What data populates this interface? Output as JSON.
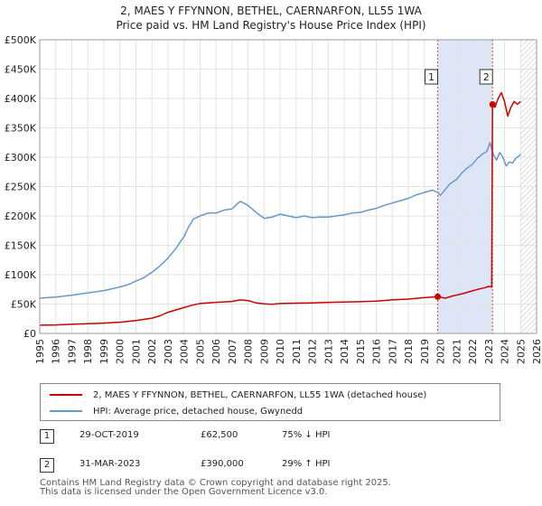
{
  "chart_data": {
    "type": "line",
    "title": "2, MAES Y FFYNNON, BETHEL, CAERNARFON, LL55 1WA",
    "subtitle": "Price paid vs. HM Land Registry's House Price Index (HPI)",
    "xlabel": "",
    "ylabel": "",
    "xlim": [
      1995,
      2026
    ],
    "ylim": [
      0,
      500000
    ],
    "y_ticks": [
      0,
      50000,
      100000,
      150000,
      200000,
      250000,
      300000,
      350000,
      400000,
      450000,
      500000
    ],
    "y_tick_labels": [
      "£0",
      "£50K",
      "£100K",
      "£150K",
      "£200K",
      "£250K",
      "£300K",
      "£350K",
      "£400K",
      "£450K",
      "£500K"
    ],
    "x_ticks": [
      1995,
      1996,
      1997,
      1998,
      1999,
      2000,
      2001,
      2002,
      2003,
      2004,
      2005,
      2006,
      2007,
      2008,
      2009,
      2010,
      2011,
      2012,
      2013,
      2014,
      2015,
      2016,
      2017,
      2018,
      2019,
      2020,
      2021,
      2022,
      2023,
      2024,
      2025,
      2026
    ],
    "x_tick_labels": [
      "1995",
      "1996",
      "1997",
      "1998",
      "1999",
      "2000",
      "2001",
      "2002",
      "2003",
      "2004",
      "2005",
      "2006",
      "2007",
      "2008",
      "2009",
      "2010",
      "2011",
      "2012",
      "2013",
      "2014",
      "2015",
      "2016",
      "2017",
      "2018",
      "2019",
      "2020",
      "2021",
      "2022",
      "2023",
      "2024",
      "2025",
      "2026"
    ],
    "grid": true,
    "shaded_regions": [
      {
        "x_start": 2019.83,
        "x_end": 2023.25,
        "color": "#dde6f7"
      }
    ],
    "hatched_future_from": 2025.0,
    "annotations": [
      {
        "label": "1",
        "x": 2019.83,
        "box_y": 440000
      },
      {
        "label": "2",
        "x": 2023.25,
        "box_y": 440000
      }
    ],
    "sale_points": [
      {
        "x": 2019.83,
        "y": 62500
      },
      {
        "x": 2023.25,
        "y": 390000
      }
    ],
    "series": [
      {
        "name": "2, MAES Y FFYNNON, BETHEL, CAERNARFON, LL55 1WA (detached house)",
        "color": "#cc0000",
        "x": [
          1995.0,
          1996.0,
          1997.0,
          1998.0,
          1999.0,
          2000.0,
          2001.0,
          2002.0,
          2002.5,
          2003.0,
          2003.5,
          2004.0,
          2004.5,
          2005.0,
          2006.0,
          2007.0,
          2007.5,
          2008.0,
          2008.5,
          2009.0,
          2009.5,
          2010.0,
          2011.0,
          2012.0,
          2013.0,
          2014.0,
          2015.0,
          2016.0,
          2017.0,
          2018.0,
          2019.0,
          2019.83,
          2020.3,
          2020.8,
          2021.3,
          2021.8,
          2022.3,
          2022.8,
          2023.0,
          2023.2,
          2023.25,
          2023.4,
          2023.6,
          2023.8,
          2024.0,
          2024.2,
          2024.4,
          2024.6,
          2024.8,
          2025.0
        ],
        "y": [
          14000,
          14500,
          15500,
          16500,
          17500,
          19000,
          22000,
          26000,
          30000,
          36000,
          40000,
          44000,
          48000,
          51000,
          53000,
          54500,
          57000,
          56000,
          52000,
          50500,
          49500,
          51000,
          51500,
          52000,
          53000,
          53500,
          54000,
          55000,
          57000,
          58500,
          61000,
          62500,
          60000,
          64000,
          67000,
          71000,
          75000,
          78000,
          80000,
          79000,
          390000,
          385000,
          400000,
          410000,
          395000,
          370000,
          385000,
          395000,
          390000,
          395000
        ]
      },
      {
        "name": "HPI: Average price, detached house, Gwynedd",
        "color": "#6699cc",
        "x": [
          1995.0,
          1995.5,
          1996.0,
          1996.5,
          1997.0,
          1997.5,
          1998.0,
          1998.5,
          1999.0,
          1999.5,
          2000.0,
          2000.5,
          2001.0,
          2001.5,
          2002.0,
          2002.5,
          2003.0,
          2003.5,
          2004.0,
          2004.3,
          2004.6,
          2005.0,
          2005.5,
          2006.0,
          2006.5,
          2007.0,
          2007.5,
          2008.0,
          2008.5,
          2009.0,
          2009.5,
          2010.0,
          2010.5,
          2011.0,
          2011.5,
          2012.0,
          2012.5,
          2013.0,
          2013.5,
          2014.0,
          2014.5,
          2015.0,
          2015.5,
          2016.0,
          2016.5,
          2017.0,
          2017.5,
          2018.0,
          2018.5,
          2019.0,
          2019.5,
          2019.83,
          2020.0,
          2020.3,
          2020.6,
          2021.0,
          2021.3,
          2021.6,
          2022.0,
          2022.3,
          2022.6,
          2022.9,
          2023.1,
          2023.3,
          2023.5,
          2023.7,
          2023.9,
          2024.1,
          2024.3,
          2024.5,
          2024.7,
          2024.9,
          2025.0
        ],
        "y": [
          60000,
          61000,
          62000,
          63500,
          65000,
          67000,
          69000,
          71000,
          73000,
          76000,
          79000,
          83000,
          89000,
          95000,
          104000,
          115000,
          128000,
          145000,
          165000,
          182000,
          195000,
          200000,
          205000,
          205000,
          210000,
          212000,
          225000,
          218000,
          206000,
          196000,
          198000,
          203000,
          200000,
          197000,
          200000,
          197000,
          198000,
          198000,
          200000,
          202000,
          205000,
          206000,
          210000,
          213000,
          218000,
          222000,
          226000,
          230000,
          236000,
          240000,
          244000,
          240000,
          235000,
          245000,
          255000,
          262000,
          272000,
          280000,
          288000,
          298000,
          305000,
          310000,
          325000,
          305000,
          295000,
          308000,
          300000,
          285000,
          292000,
          290000,
          298000,
          302000,
          305000
        ]
      }
    ],
    "legend_position": "below"
  },
  "legend": {
    "property_label": "2, MAES Y FFYNNON, BETHEL, CAERNARFON, LL55 1WA (detached house)",
    "hpi_label": "HPI: Average price, detached house, Gwynedd",
    "property_color": "#cc0000",
    "hpi_color": "#6699cc"
  },
  "sales": [
    {
      "badge": "1",
      "date": "29-OCT-2019",
      "price": "£62,500",
      "hpi": "75% ↓ HPI"
    },
    {
      "badge": "2",
      "date": "31-MAR-2023",
      "price": "£390,000",
      "hpi": "29% ↑ HPI"
    }
  ],
  "footer": {
    "line1": "Contains HM Land Registry data © Crown copyright and database right 2025.",
    "line2": "This data is licensed under the Open Government Licence v3.0."
  }
}
